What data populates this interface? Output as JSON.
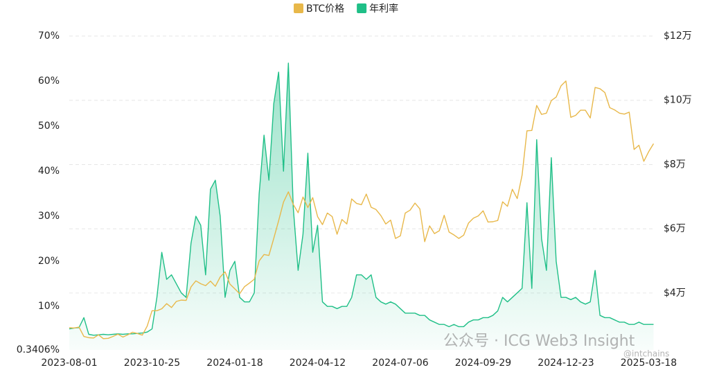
{
  "chart_data": {
    "type": "line",
    "legend": [
      "BTC价格",
      "年利率"
    ],
    "x": [
      "2023-08-01",
      "2023-08-06",
      "2023-08-11",
      "2023-08-16",
      "2023-08-21",
      "2023-08-26",
      "2023-08-31",
      "2023-09-05",
      "2023-09-10",
      "2023-09-15",
      "2023-09-20",
      "2023-09-25",
      "2023-09-30",
      "2023-10-05",
      "2023-10-10",
      "2023-10-15",
      "2023-10-20",
      "2023-10-25",
      "2023-10-30",
      "2023-11-04",
      "2023-11-09",
      "2023-11-14",
      "2023-11-19",
      "2023-11-24",
      "2023-11-29",
      "2023-12-04",
      "2023-12-09",
      "2023-12-14",
      "2023-12-19",
      "2023-12-24",
      "2023-12-29",
      "2024-01-03",
      "2024-01-08",
      "2024-01-13",
      "2024-01-18",
      "2024-01-23",
      "2024-01-28",
      "2024-02-02",
      "2024-02-07",
      "2024-02-12",
      "2024-02-17",
      "2024-02-22",
      "2024-02-27",
      "2024-03-03",
      "2024-03-08",
      "2024-03-13",
      "2024-03-18",
      "2024-03-23",
      "2024-03-28",
      "2024-04-02",
      "2024-04-07",
      "2024-04-12",
      "2024-04-17",
      "2024-04-22",
      "2024-04-27",
      "2024-05-02",
      "2024-05-07",
      "2024-05-12",
      "2024-05-17",
      "2024-05-22",
      "2024-05-27",
      "2024-06-01",
      "2024-06-06",
      "2024-06-11",
      "2024-06-16",
      "2024-06-21",
      "2024-06-26",
      "2024-07-01",
      "2024-07-06",
      "2024-07-11",
      "2024-07-16",
      "2024-07-21",
      "2024-07-26",
      "2024-07-31",
      "2024-08-05",
      "2024-08-10",
      "2024-08-15",
      "2024-08-20",
      "2024-08-25",
      "2024-08-30",
      "2024-09-04",
      "2024-09-09",
      "2024-09-14",
      "2024-09-19",
      "2024-09-24",
      "2024-09-29",
      "2024-10-04",
      "2024-10-09",
      "2024-10-14",
      "2024-10-19",
      "2024-10-24",
      "2024-10-29",
      "2024-11-03",
      "2024-11-08",
      "2024-11-13",
      "2024-11-18",
      "2024-11-23",
      "2024-11-28",
      "2024-12-03",
      "2024-12-08",
      "2024-12-13",
      "2024-12-18",
      "2024-12-23",
      "2024-12-28",
      "2025-01-02",
      "2025-01-07",
      "2025-01-12",
      "2025-01-17",
      "2025-01-22",
      "2025-01-27",
      "2025-02-01",
      "2025-02-06",
      "2025-02-11",
      "2025-02-16",
      "2025-02-21",
      "2025-02-26",
      "2025-03-03",
      "2025-03-08",
      "2025-03-13",
      "2025-03-18",
      "2025-03-23"
    ],
    "xlim": [
      "2023-08-01",
      "2025-03-23"
    ],
    "xticks": [
      "2023-08-01",
      "2023-10-25",
      "2024-01-18",
      "2024-04-12",
      "2024-07-06",
      "2024-09-29",
      "2024-12-23",
      "2025-03-18"
    ],
    "ylim": [
      0.3406,
      70
    ],
    "yticks": [
      {
        "value": 0.3406,
        "label": "0.3406%"
      },
      {
        "value": 10,
        "label": "10%"
      },
      {
        "value": 20,
        "label": "20%"
      },
      {
        "value": 30,
        "label": "30%"
      },
      {
        "value": 40,
        "label": "40%"
      },
      {
        "value": 50,
        "label": "50%"
      },
      {
        "value": 60,
        "label": "60%"
      },
      {
        "value": 70,
        "label": "70%"
      }
    ],
    "y2lim": [
      22300,
      120000
    ],
    "y2ticks": [
      {
        "value": 40000,
        "label": "$4万"
      },
      {
        "value": 60000,
        "label": "$6万"
      },
      {
        "value": 80000,
        "label": "$8万"
      },
      {
        "value": 100000,
        "label": "$10万"
      },
      {
        "value": 120000,
        "label": "$12万"
      }
    ],
    "grid": true,
    "series": [
      {
        "name": "BTC价格",
        "color": "#e8b84a",
        "axis": "y2",
        "values": [
          29200,
          29100,
          29400,
          26500,
          26100,
          26000,
          27000,
          25800,
          25900,
          26500,
          27200,
          26300,
          27000,
          27800,
          27400,
          26900,
          29700,
          34500,
          34500,
          35100,
          36700,
          35500,
          37400,
          37800,
          37700,
          41900,
          43800,
          42900,
          42300,
          43700,
          42100,
          45000,
          46600,
          42800,
          41300,
          39800,
          42000,
          43100,
          44300,
          50000,
          52000,
          51700,
          57000,
          62500,
          68300,
          71500,
          67600,
          65000,
          69900,
          66600,
          69700,
          63800,
          61300,
          64900,
          63800,
          58300,
          62900,
          61500,
          69300,
          67900,
          67500,
          70800,
          66700,
          66000,
          64100,
          61500,
          62700,
          57000,
          57800,
          64900,
          65800,
          68000,
          66200,
          56000,
          60900,
          58500,
          59400,
          64200,
          59000,
          58100,
          57000,
          58000,
          61800,
          63300,
          64000,
          65600,
          62100,
          62200,
          62600,
          68400,
          67000,
          72300,
          69400,
          76700,
          90500,
          90600,
          98400,
          95600,
          96000,
          99900,
          101000,
          104500,
          106000,
          94700,
          95300,
          96900,
          96900,
          94500,
          104000,
          103600,
          102400,
          97700,
          97000,
          96000,
          95700,
          96300,
          84700,
          86000,
          81000,
          84000,
          86500
        ]
      },
      {
        "name": "年利率",
        "color": "#1fbf87",
        "values": [
          5.0,
          5.2,
          5.3,
          7.5,
          3.8,
          3.6,
          3.7,
          3.8,
          3.7,
          3.8,
          3.9,
          3.8,
          3.9,
          3.9,
          4.0,
          4.1,
          4.3,
          5.0,
          12,
          22,
          16,
          17,
          15,
          13,
          12,
          24,
          30,
          28,
          17,
          36,
          38,
          30,
          12,
          18,
          20,
          12,
          11,
          11,
          13,
          35,
          48,
          38,
          55,
          62,
          40,
          64,
          32,
          18,
          26,
          44,
          22,
          28,
          11,
          10,
          10,
          9.5,
          10,
          10,
          12,
          17,
          17,
          16,
          17,
          12,
          11,
          10.5,
          11,
          10.5,
          9.5,
          8.5,
          8.5,
          8.5,
          8,
          8,
          7,
          6.5,
          6,
          6,
          5.5,
          6,
          5.5,
          5.5,
          6.5,
          7,
          7,
          7.5,
          7.5,
          8,
          9,
          12,
          11,
          12,
          13,
          14,
          33,
          14,
          47,
          25,
          18,
          43,
          20,
          12,
          12,
          11.5,
          12,
          11,
          10.5,
          11,
          18,
          8,
          7.5,
          7.5,
          7,
          6.5,
          6.5,
          6,
          6,
          6.5,
          6,
          6,
          6
        ]
      }
    ],
    "watermarks": [
      "公众号 · ICG Web3 Insight",
      "@intchains"
    ]
  }
}
